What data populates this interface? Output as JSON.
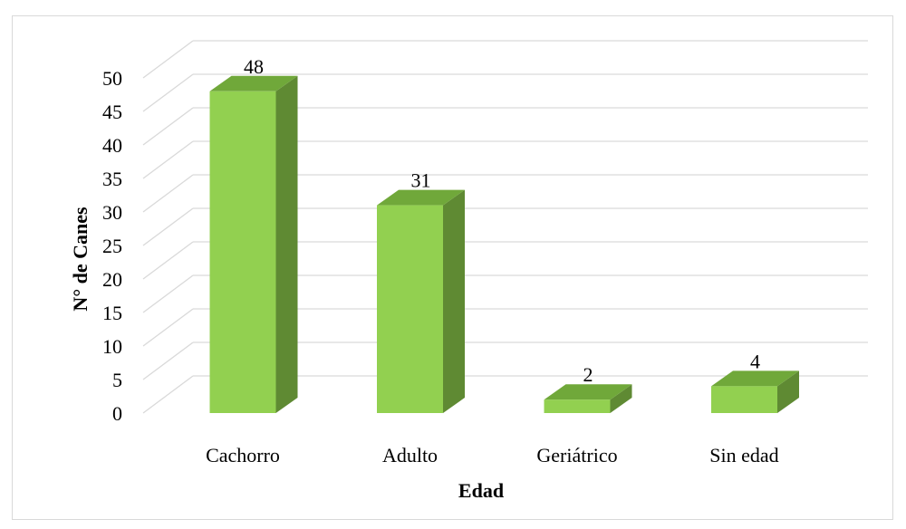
{
  "chart_data": {
    "type": "bar",
    "style": "3d-column",
    "categories": [
      "Cachorro",
      "Adulto",
      "Geriátrico",
      "Sin edad"
    ],
    "values": [
      48,
      31,
      2,
      4
    ],
    "title": "",
    "xlabel": "Edad",
    "ylabel": "N° de Canes",
    "ylim": [
      0,
      50
    ],
    "yticks": [
      "0",
      "5",
      "10",
      "15",
      "20",
      "25",
      "30",
      "35",
      "40",
      "45",
      "50"
    ],
    "data_labels": [
      "48",
      "31",
      "2",
      "4"
    ],
    "grid": true,
    "legend": "none",
    "colors": {
      "front": "#92d050",
      "side": "#5f8a33",
      "top": "#70a83a",
      "grid": "#d9d9d9"
    }
  }
}
